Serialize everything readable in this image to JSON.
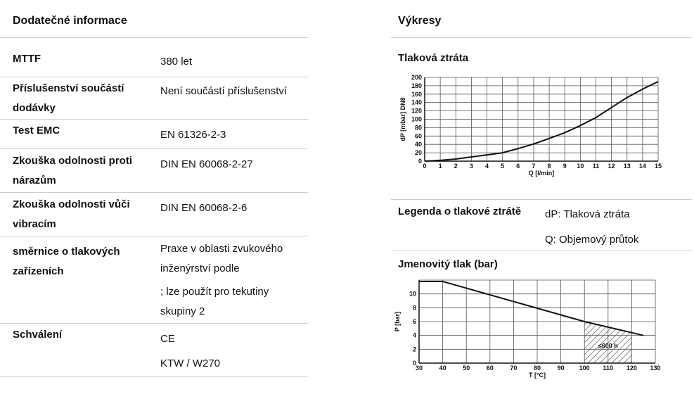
{
  "left": {
    "title": "Dodatečné informace",
    "rows": [
      {
        "label": "MTTF",
        "values": [
          "380 let"
        ]
      },
      {
        "label": "Příslušenství součástí dodávky",
        "values": [
          "Není součástí příslušenství"
        ]
      },
      {
        "label": "Test EMC",
        "values": [
          "EN 61326-2-3"
        ]
      },
      {
        "label": "Zkouška odolnosti proti nárazům",
        "values": [
          "DIN EN 60068-2-27"
        ]
      },
      {
        "label": "Zkouška odolnosti vůči vibracím",
        "values": [
          "DIN EN 60068-2-6"
        ]
      },
      {
        "label": "směrnice o tlakových zařízeních",
        "values": [
          "Praxe v oblasti zvukového inženýrství podle",
          "; lze použít pro tekutiny skupiny 2"
        ]
      },
      {
        "label": "Schválení",
        "values": [
          "CE",
          "KTW / W270"
        ]
      }
    ]
  },
  "right": {
    "title": "Výkresy",
    "legend": {
      "label": "Legenda o tlakové ztrátě",
      "items": [
        "dP: Tlaková ztráta",
        "Q: Objemový průtok"
      ]
    }
  },
  "chart_data": [
    {
      "type": "line",
      "title": "Tlaková ztráta",
      "xlabel": "Q [l/min]",
      "ylabel": "dP [mbar] DN8",
      "xlim": [
        0,
        15
      ],
      "ylim": [
        0,
        200
      ],
      "x_ticks": [
        0,
        1,
        2,
        3,
        4,
        5,
        6,
        7,
        8,
        9,
        10,
        11,
        12,
        13,
        14,
        15
      ],
      "y_ticks": [
        0,
        20,
        40,
        60,
        80,
        100,
        120,
        140,
        160,
        180,
        200
      ],
      "grid": true,
      "series": [
        {
          "x": [
            0,
            1,
            2,
            3,
            4,
            5,
            6,
            7,
            8,
            9,
            10,
            11,
            12,
            13,
            14,
            15
          ],
          "y": [
            0,
            2,
            5,
            10,
            15,
            20,
            30,
            41,
            54,
            68,
            85,
            104,
            128,
            152,
            172,
            190
          ]
        }
      ]
    },
    {
      "type": "line",
      "title": "Jmenovitý tlak (bar)",
      "xlabel": "T [°C]",
      "ylabel": "P [bar]",
      "xlim": [
        30,
        130
      ],
      "ylim": [
        0,
        12
      ],
      "x_ticks": [
        30,
        40,
        50,
        60,
        70,
        80,
        90,
        100,
        110,
        120,
        130
      ],
      "y_ticks": [
        0,
        2,
        4,
        6,
        8,
        10
      ],
      "grid": true,
      "series": [
        {
          "x": [
            30,
            40,
            100,
            125
          ],
          "y": [
            11.8,
            11.8,
            6,
            4
          ]
        }
      ],
      "annotation": {
        "text": "≤600 h",
        "x_range": [
          100,
          120
        ],
        "hatched": true
      }
    }
  ]
}
